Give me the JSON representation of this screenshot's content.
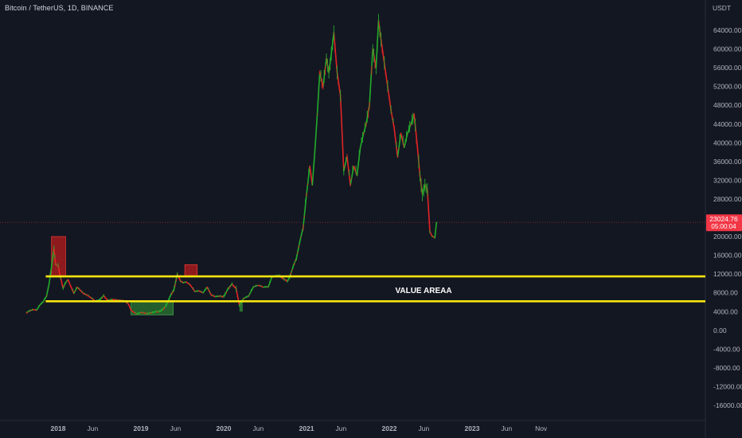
{
  "header": {
    "symbol": "Bitcoin / TetherUS, 1D, BINANCE"
  },
  "price_axis": {
    "currency": "USDT",
    "last_price": "23024.76",
    "countdown": "05:00:04",
    "last_price_value": 23024.76
  },
  "colors": {
    "background": "#131722",
    "up_candle": "#26a69a",
    "down_candle": "#ef5350",
    "line_green": "#22ab2a",
    "line_red": "#e02424",
    "support_line": "#f5e50f",
    "last_price_badge": "#f23645",
    "red_zone": "#b71c1c",
    "green_zone": "#2e7d32"
  },
  "annotations": {
    "value_area_label": "VALUE AREAA",
    "upper_line_price": 11500,
    "lower_line_price": 6200
  },
  "chart_data": {
    "type": "line",
    "title": "Bitcoin / TetherUS, 1D, BINANCE",
    "ylabel": "USDT",
    "ylim": [
      -18000,
      68000
    ],
    "y_ticks": [
      "64000.00",
      "60000.00",
      "56000.00",
      "52000.00",
      "48000.00",
      "44000.00",
      "40000.00",
      "36000.00",
      "32000.00",
      "28000.00",
      "24000.00",
      "20000.00",
      "16000.00",
      "12000.00",
      "8000.00",
      "4000.00",
      "0.00",
      "-4000.00",
      "-8000.00",
      "-12000.00",
      "-16000.00"
    ],
    "y_tick_values": [
      64000,
      60000,
      56000,
      52000,
      48000,
      44000,
      40000,
      36000,
      32000,
      28000,
      24000,
      20000,
      16000,
      12000,
      8000,
      4000,
      0,
      -4000,
      -8000,
      -12000,
      -16000
    ],
    "x_ticks": [
      "2018",
      "Jun",
      "2019",
      "Jun",
      "2020",
      "Jun",
      "2021",
      "Jun",
      "2022",
      "Jun",
      "2023",
      "Jun",
      "Nov"
    ],
    "x_tick_dates": [
      2018.0,
      2018.417,
      2019.0,
      2019.417,
      2020.0,
      2020.417,
      2021.0,
      2021.417,
      2022.0,
      2022.417,
      2023.0,
      2023.417,
      2023.833
    ],
    "series": [
      {
        "x": [
          2017.62,
          2017.66,
          2017.7,
          2017.74,
          2017.78,
          2017.82,
          2017.86,
          2017.89,
          2017.92,
          2017.95,
          2017.97,
          2018.0,
          2018.03,
          2018.06,
          2018.09,
          2018.12,
          2018.15,
          2018.19,
          2018.23,
          2018.27,
          2018.31,
          2018.35,
          2018.4,
          2018.45,
          2018.5,
          2018.55,
          2018.6,
          2018.65,
          2018.7,
          2018.75,
          2018.8,
          2018.85,
          2018.88,
          2018.91,
          2018.95,
          2019.0,
          2019.08,
          2019.16,
          2019.24,
          2019.3,
          2019.36,
          2019.4,
          2019.44,
          2019.48,
          2019.51,
          2019.55,
          2019.6,
          2019.65,
          2019.7,
          2019.75,
          2019.8,
          2019.85,
          2019.9,
          2019.95,
          2020.0,
          2020.05,
          2020.1,
          2020.15,
          2020.19,
          2020.21,
          2020.24,
          2020.3,
          2020.36,
          2020.42,
          2020.48,
          2020.54,
          2020.58,
          2020.62,
          2020.67,
          2020.72,
          2020.77,
          2020.8,
          2020.84,
          2020.88,
          2020.92,
          2020.96,
          2021.0,
          2021.04,
          2021.07,
          2021.1,
          2021.13,
          2021.16,
          2021.2,
          2021.24,
          2021.27,
          2021.3,
          2021.33,
          2021.37,
          2021.41,
          2021.45,
          2021.49,
          2021.53,
          2021.57,
          2021.61,
          2021.65,
          2021.69,
          2021.72,
          2021.76,
          2021.8,
          2021.84,
          2021.87,
          2021.9,
          2021.94,
          2021.98,
          2022.02,
          2022.06,
          2022.1,
          2022.14,
          2022.18,
          2022.22,
          2022.26,
          2022.3,
          2022.34,
          2022.37,
          2022.4,
          2022.43,
          2022.46,
          2022.49,
          2022.52,
          2022.55,
          2022.57
        ],
        "y": [
          3800,
          4200,
          4400,
          4300,
          5400,
          6100,
          7300,
          9800,
          13500,
          17500,
          14000,
          13800,
          11200,
          9000,
          10200,
          10800,
          9500,
          7900,
          9200,
          8500,
          7800,
          7500,
          6900,
          6200,
          6500,
          7400,
          6400,
          6600,
          6500,
          6400,
          6300,
          5600,
          4300,
          3900,
          3500,
          3800,
          3600,
          3900,
          4100,
          5200,
          7500,
          8800,
          12000,
          10500,
          10200,
          10300,
          9600,
          8300,
          8400,
          8000,
          9200,
          7500,
          7200,
          7300,
          7200,
          8800,
          9900,
          8900,
          5300,
          6000,
          6800,
          7300,
          9300,
          9600,
          9200,
          9300,
          11300,
          11600,
          11700,
          11000,
          10500,
          11500,
          13700,
          15500,
          19000,
          22000,
          29000,
          35000,
          31000,
          38000,
          46000,
          55000,
          52000,
          58000,
          55000,
          59000,
          63500,
          55000,
          50000,
          34000,
          37000,
          31000,
          35000,
          33000,
          39000,
          42000,
          44000,
          48000,
          60000,
          56000,
          66000,
          62000,
          57000,
          52000,
          47000,
          43000,
          37000,
          42000,
          39000,
          42000,
          44000,
          46000,
          39000,
          33000,
          29000,
          31000,
          30000,
          21000,
          20000,
          19800,
          23000
        ]
      }
    ]
  }
}
